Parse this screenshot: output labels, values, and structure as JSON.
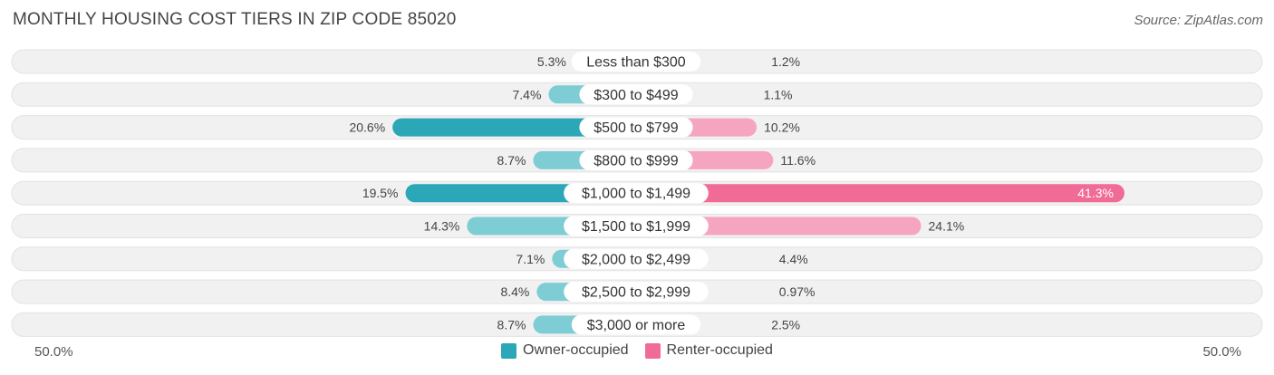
{
  "title": "MONTHLY HOUSING COST TIERS IN ZIP CODE 85020",
  "source": "Source: ZipAtlas.com",
  "axis": {
    "left_label": "50.0%",
    "right_label": "50.0%"
  },
  "legend": [
    {
      "label": "Owner-occupied",
      "color": "#2ba7b8"
    },
    {
      "label": "Renter-occupied",
      "color": "#f06b96"
    }
  ],
  "colors": {
    "owner_light": "#7ecdd5",
    "owner_dark": "#2ba7b8",
    "renter_light": "#f5a5c0",
    "renter_dark": "#f06b96",
    "row_bg": "#f1f1f1",
    "row_border": "#e2e2e2"
  },
  "chart_data": {
    "type": "bar",
    "orientation": "horizontal-diverging",
    "xlim": [
      -50,
      50
    ],
    "categories": [
      "Less than $300",
      "$300 to $499",
      "$500 to $799",
      "$800 to $999",
      "$1,000 to $1,499",
      "$1,500 to $1,999",
      "$2,000 to $2,499",
      "$2,500 to $2,999",
      "$3,000 or more"
    ],
    "series": [
      {
        "name": "Owner-occupied",
        "values": [
          5.3,
          7.4,
          20.6,
          8.7,
          19.5,
          14.3,
          7.1,
          8.4,
          8.7
        ],
        "labels": [
          "5.3%",
          "7.4%",
          "20.6%",
          "8.7%",
          "19.5%",
          "14.3%",
          "7.1%",
          "8.4%",
          "8.7%"
        ]
      },
      {
        "name": "Renter-occupied",
        "values": [
          1.2,
          1.1,
          10.2,
          11.6,
          41.3,
          24.1,
          4.4,
          0.97,
          2.5
        ],
        "labels": [
          "1.2%",
          "1.1%",
          "10.2%",
          "11.6%",
          "41.3%",
          "24.1%",
          "4.4%",
          "0.97%",
          "2.5%"
        ]
      }
    ]
  }
}
